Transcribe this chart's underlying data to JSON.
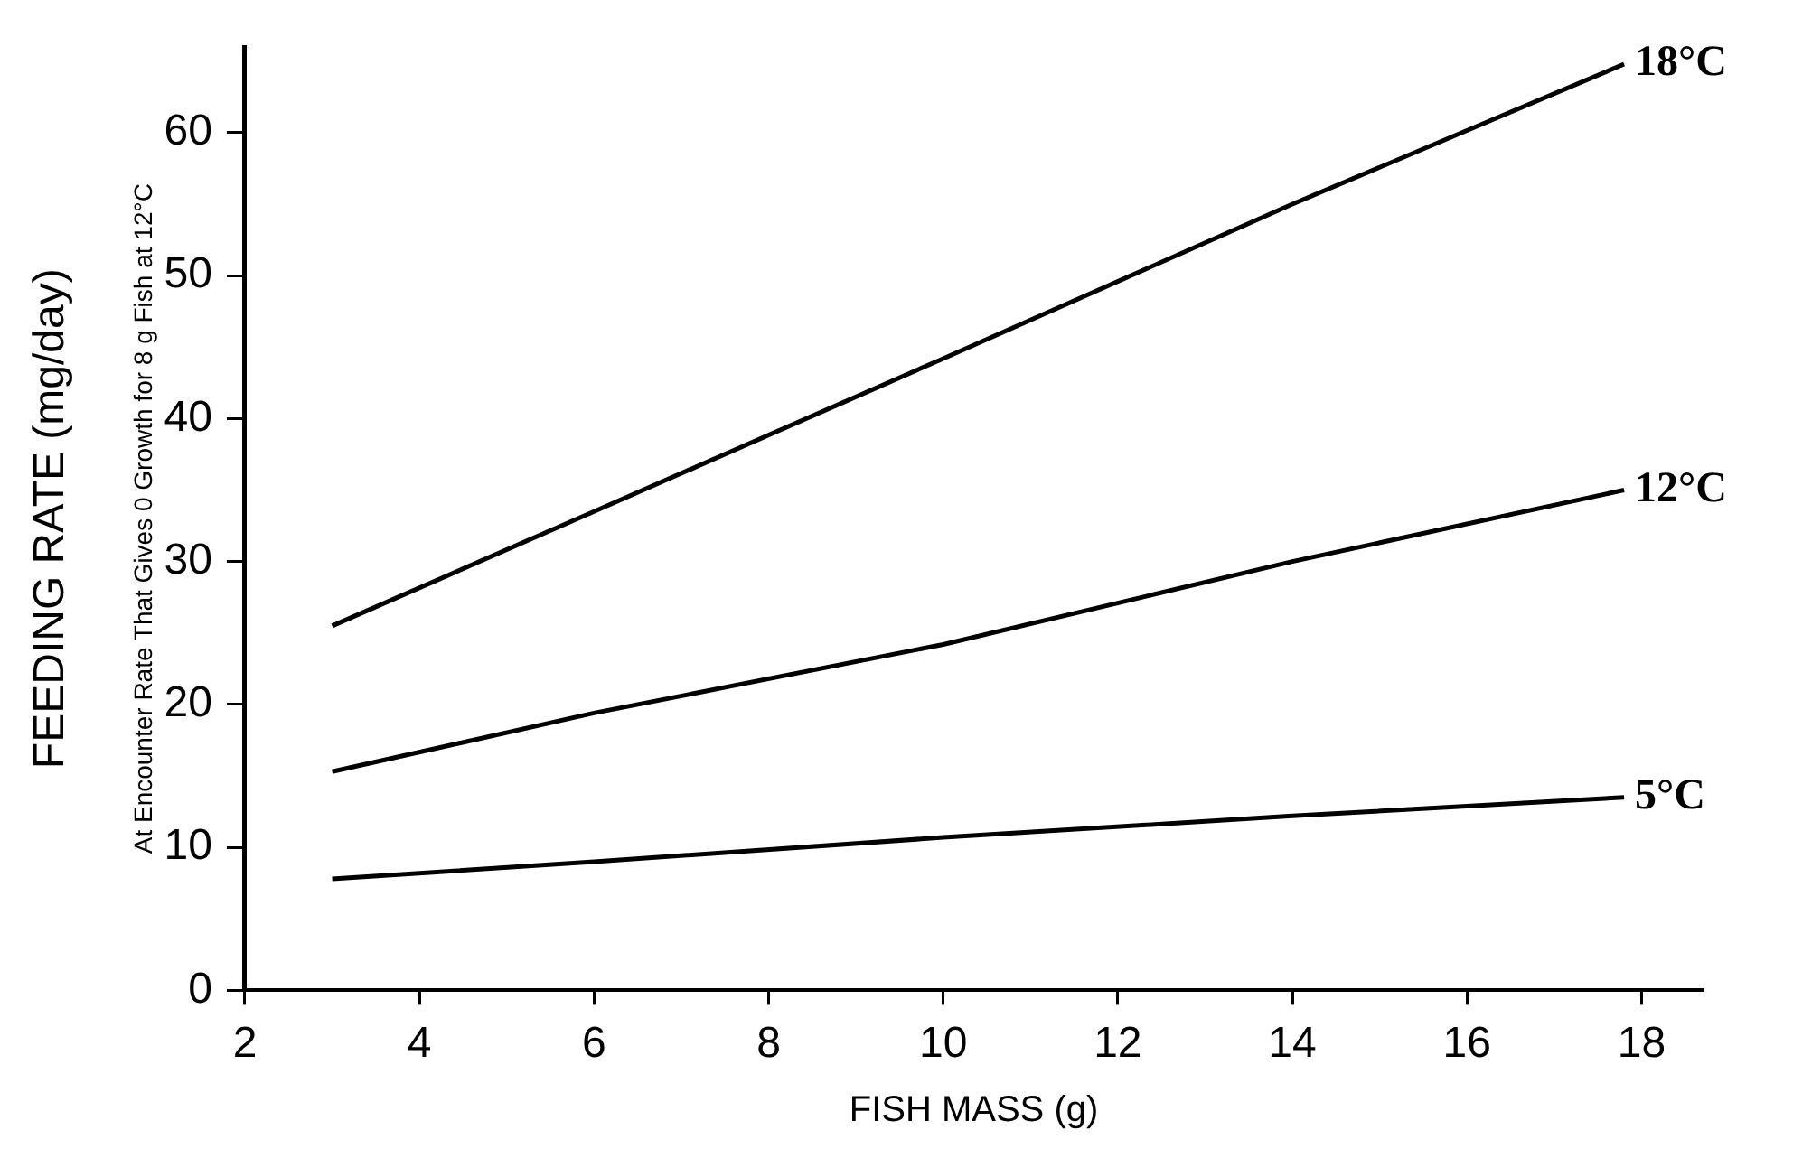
{
  "chart_data": {
    "type": "line",
    "xlabel": "FISH MASS (g)",
    "ylabel": "FEEDING RATE (mg/day)",
    "annotations": [
      "At Encounter Rate That Gives 0 Growth for 8 g Fish at 12°C"
    ],
    "xlim": [
      2,
      18.7
    ],
    "xticks": [
      2,
      4,
      6,
      8,
      10,
      12,
      14,
      16,
      18
    ],
    "ylim": [
      0,
      66
    ],
    "yticks": [
      0,
      10,
      20,
      30,
      40,
      50,
      60
    ],
    "grid": false,
    "legend": false,
    "marker": "none",
    "line_style": "solid",
    "series": [
      {
        "name": "18°C",
        "color": "#000000",
        "x": [
          3,
          6,
          10,
          14,
          17.8
        ],
        "values": [
          25.5,
          33.5,
          44.2,
          55,
          64.8
        ]
      },
      {
        "name": "12°C",
        "color": "#000000",
        "x": [
          3,
          6,
          10,
          14,
          17.8
        ],
        "values": [
          15.3,
          19.4,
          24.2,
          30,
          35
        ]
      },
      {
        "name": "5°C",
        "color": "#000000",
        "x": [
          3,
          6,
          10,
          14,
          17.8
        ],
        "values": [
          7.8,
          9,
          10.7,
          12.2,
          13.5
        ]
      }
    ]
  }
}
